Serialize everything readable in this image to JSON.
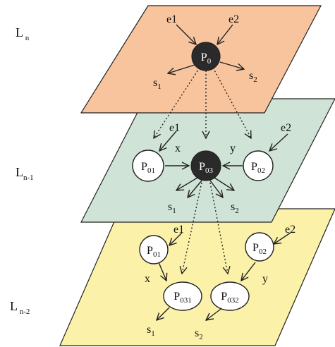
{
  "layers": [
    {
      "base": "L",
      "sub": " n",
      "color": "#f8c49e"
    },
    {
      "base": "L",
      "sub": "n-1",
      "color": "#cfe3d6"
    },
    {
      "base": "L",
      "sub": " n-2",
      "color": "#fbf1a8"
    }
  ],
  "nodes": {
    "p0": {
      "base": "P",
      "sub": "0"
    },
    "p01a": {
      "base": "P",
      "sub": "01"
    },
    "p03": {
      "base": "P",
      "sub": "03"
    },
    "p02a": {
      "base": "P",
      "sub": "02"
    },
    "p01b": {
      "base": "P",
      "sub": "01"
    },
    "p02b": {
      "base": "P",
      "sub": "02"
    },
    "p031": {
      "base": "P",
      "sub": "031"
    },
    "p032": {
      "base": "P",
      "sub": "032"
    }
  },
  "labels": {
    "e1": "e1",
    "e2": "e2",
    "x": "x",
    "y": "y",
    "s": "s",
    "s1_sub": "1",
    "s2_sub": "2"
  },
  "colors": {
    "dark_node": "#2a2a2a",
    "light_node": "#ffffff",
    "stroke": "#222222"
  }
}
